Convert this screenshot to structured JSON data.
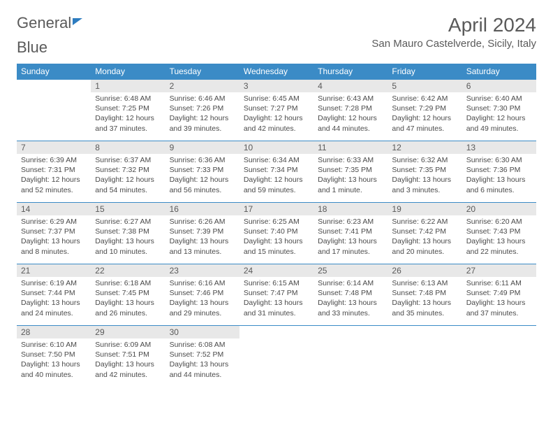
{
  "brand": {
    "name_part1": "General",
    "name_part2": "Blue"
  },
  "title": "April 2024",
  "location": "San Mauro Castelverde, Sicily, Italy",
  "colors": {
    "header_bg": "#3b8bc6",
    "header_text": "#ffffff",
    "daynum_bg": "#e8e8e8",
    "text": "#5a5a5a",
    "body_text": "#4a4a4a",
    "row_border": "#3b8bc6",
    "brand_blue": "#2d7cc0"
  },
  "typography": {
    "title_fontsize": 28,
    "location_fontsize": 15,
    "weekday_fontsize": 12,
    "daynum_fontsize": 12,
    "body_fontsize": 10.5
  },
  "weekdays": [
    "Sunday",
    "Monday",
    "Tuesday",
    "Wednesday",
    "Thursday",
    "Friday",
    "Saturday"
  ],
  "weeks": [
    [
      {
        "n": "",
        "sunrise": "",
        "sunset": "",
        "daylight": "",
        "empty": true
      },
      {
        "n": "1",
        "sunrise": "Sunrise: 6:48 AM",
        "sunset": "Sunset: 7:25 PM",
        "daylight": "Daylight: 12 hours and 37 minutes."
      },
      {
        "n": "2",
        "sunrise": "Sunrise: 6:46 AM",
        "sunset": "Sunset: 7:26 PM",
        "daylight": "Daylight: 12 hours and 39 minutes."
      },
      {
        "n": "3",
        "sunrise": "Sunrise: 6:45 AM",
        "sunset": "Sunset: 7:27 PM",
        "daylight": "Daylight: 12 hours and 42 minutes."
      },
      {
        "n": "4",
        "sunrise": "Sunrise: 6:43 AM",
        "sunset": "Sunset: 7:28 PM",
        "daylight": "Daylight: 12 hours and 44 minutes."
      },
      {
        "n": "5",
        "sunrise": "Sunrise: 6:42 AM",
        "sunset": "Sunset: 7:29 PM",
        "daylight": "Daylight: 12 hours and 47 minutes."
      },
      {
        "n": "6",
        "sunrise": "Sunrise: 6:40 AM",
        "sunset": "Sunset: 7:30 PM",
        "daylight": "Daylight: 12 hours and 49 minutes."
      }
    ],
    [
      {
        "n": "7",
        "sunrise": "Sunrise: 6:39 AM",
        "sunset": "Sunset: 7:31 PM",
        "daylight": "Daylight: 12 hours and 52 minutes."
      },
      {
        "n": "8",
        "sunrise": "Sunrise: 6:37 AM",
        "sunset": "Sunset: 7:32 PM",
        "daylight": "Daylight: 12 hours and 54 minutes."
      },
      {
        "n": "9",
        "sunrise": "Sunrise: 6:36 AM",
        "sunset": "Sunset: 7:33 PM",
        "daylight": "Daylight: 12 hours and 56 minutes."
      },
      {
        "n": "10",
        "sunrise": "Sunrise: 6:34 AM",
        "sunset": "Sunset: 7:34 PM",
        "daylight": "Daylight: 12 hours and 59 minutes."
      },
      {
        "n": "11",
        "sunrise": "Sunrise: 6:33 AM",
        "sunset": "Sunset: 7:35 PM",
        "daylight": "Daylight: 13 hours and 1 minute."
      },
      {
        "n": "12",
        "sunrise": "Sunrise: 6:32 AM",
        "sunset": "Sunset: 7:35 PM",
        "daylight": "Daylight: 13 hours and 3 minutes."
      },
      {
        "n": "13",
        "sunrise": "Sunrise: 6:30 AM",
        "sunset": "Sunset: 7:36 PM",
        "daylight": "Daylight: 13 hours and 6 minutes."
      }
    ],
    [
      {
        "n": "14",
        "sunrise": "Sunrise: 6:29 AM",
        "sunset": "Sunset: 7:37 PM",
        "daylight": "Daylight: 13 hours and 8 minutes."
      },
      {
        "n": "15",
        "sunrise": "Sunrise: 6:27 AM",
        "sunset": "Sunset: 7:38 PM",
        "daylight": "Daylight: 13 hours and 10 minutes."
      },
      {
        "n": "16",
        "sunrise": "Sunrise: 6:26 AM",
        "sunset": "Sunset: 7:39 PM",
        "daylight": "Daylight: 13 hours and 13 minutes."
      },
      {
        "n": "17",
        "sunrise": "Sunrise: 6:25 AM",
        "sunset": "Sunset: 7:40 PM",
        "daylight": "Daylight: 13 hours and 15 minutes."
      },
      {
        "n": "18",
        "sunrise": "Sunrise: 6:23 AM",
        "sunset": "Sunset: 7:41 PM",
        "daylight": "Daylight: 13 hours and 17 minutes."
      },
      {
        "n": "19",
        "sunrise": "Sunrise: 6:22 AM",
        "sunset": "Sunset: 7:42 PM",
        "daylight": "Daylight: 13 hours and 20 minutes."
      },
      {
        "n": "20",
        "sunrise": "Sunrise: 6:20 AM",
        "sunset": "Sunset: 7:43 PM",
        "daylight": "Daylight: 13 hours and 22 minutes."
      }
    ],
    [
      {
        "n": "21",
        "sunrise": "Sunrise: 6:19 AM",
        "sunset": "Sunset: 7:44 PM",
        "daylight": "Daylight: 13 hours and 24 minutes."
      },
      {
        "n": "22",
        "sunrise": "Sunrise: 6:18 AM",
        "sunset": "Sunset: 7:45 PM",
        "daylight": "Daylight: 13 hours and 26 minutes."
      },
      {
        "n": "23",
        "sunrise": "Sunrise: 6:16 AM",
        "sunset": "Sunset: 7:46 PM",
        "daylight": "Daylight: 13 hours and 29 minutes."
      },
      {
        "n": "24",
        "sunrise": "Sunrise: 6:15 AM",
        "sunset": "Sunset: 7:47 PM",
        "daylight": "Daylight: 13 hours and 31 minutes."
      },
      {
        "n": "25",
        "sunrise": "Sunrise: 6:14 AM",
        "sunset": "Sunset: 7:48 PM",
        "daylight": "Daylight: 13 hours and 33 minutes."
      },
      {
        "n": "26",
        "sunrise": "Sunrise: 6:13 AM",
        "sunset": "Sunset: 7:48 PM",
        "daylight": "Daylight: 13 hours and 35 minutes."
      },
      {
        "n": "27",
        "sunrise": "Sunrise: 6:11 AM",
        "sunset": "Sunset: 7:49 PM",
        "daylight": "Daylight: 13 hours and 37 minutes."
      }
    ],
    [
      {
        "n": "28",
        "sunrise": "Sunrise: 6:10 AM",
        "sunset": "Sunset: 7:50 PM",
        "daylight": "Daylight: 13 hours and 40 minutes."
      },
      {
        "n": "29",
        "sunrise": "Sunrise: 6:09 AM",
        "sunset": "Sunset: 7:51 PM",
        "daylight": "Daylight: 13 hours and 42 minutes."
      },
      {
        "n": "30",
        "sunrise": "Sunrise: 6:08 AM",
        "sunset": "Sunset: 7:52 PM",
        "daylight": "Daylight: 13 hours and 44 minutes."
      },
      {
        "n": "",
        "sunrise": "",
        "sunset": "",
        "daylight": "",
        "empty": true
      },
      {
        "n": "",
        "sunrise": "",
        "sunset": "",
        "daylight": "",
        "empty": true
      },
      {
        "n": "",
        "sunrise": "",
        "sunset": "",
        "daylight": "",
        "empty": true
      },
      {
        "n": "",
        "sunrise": "",
        "sunset": "",
        "daylight": "",
        "empty": true
      }
    ]
  ]
}
